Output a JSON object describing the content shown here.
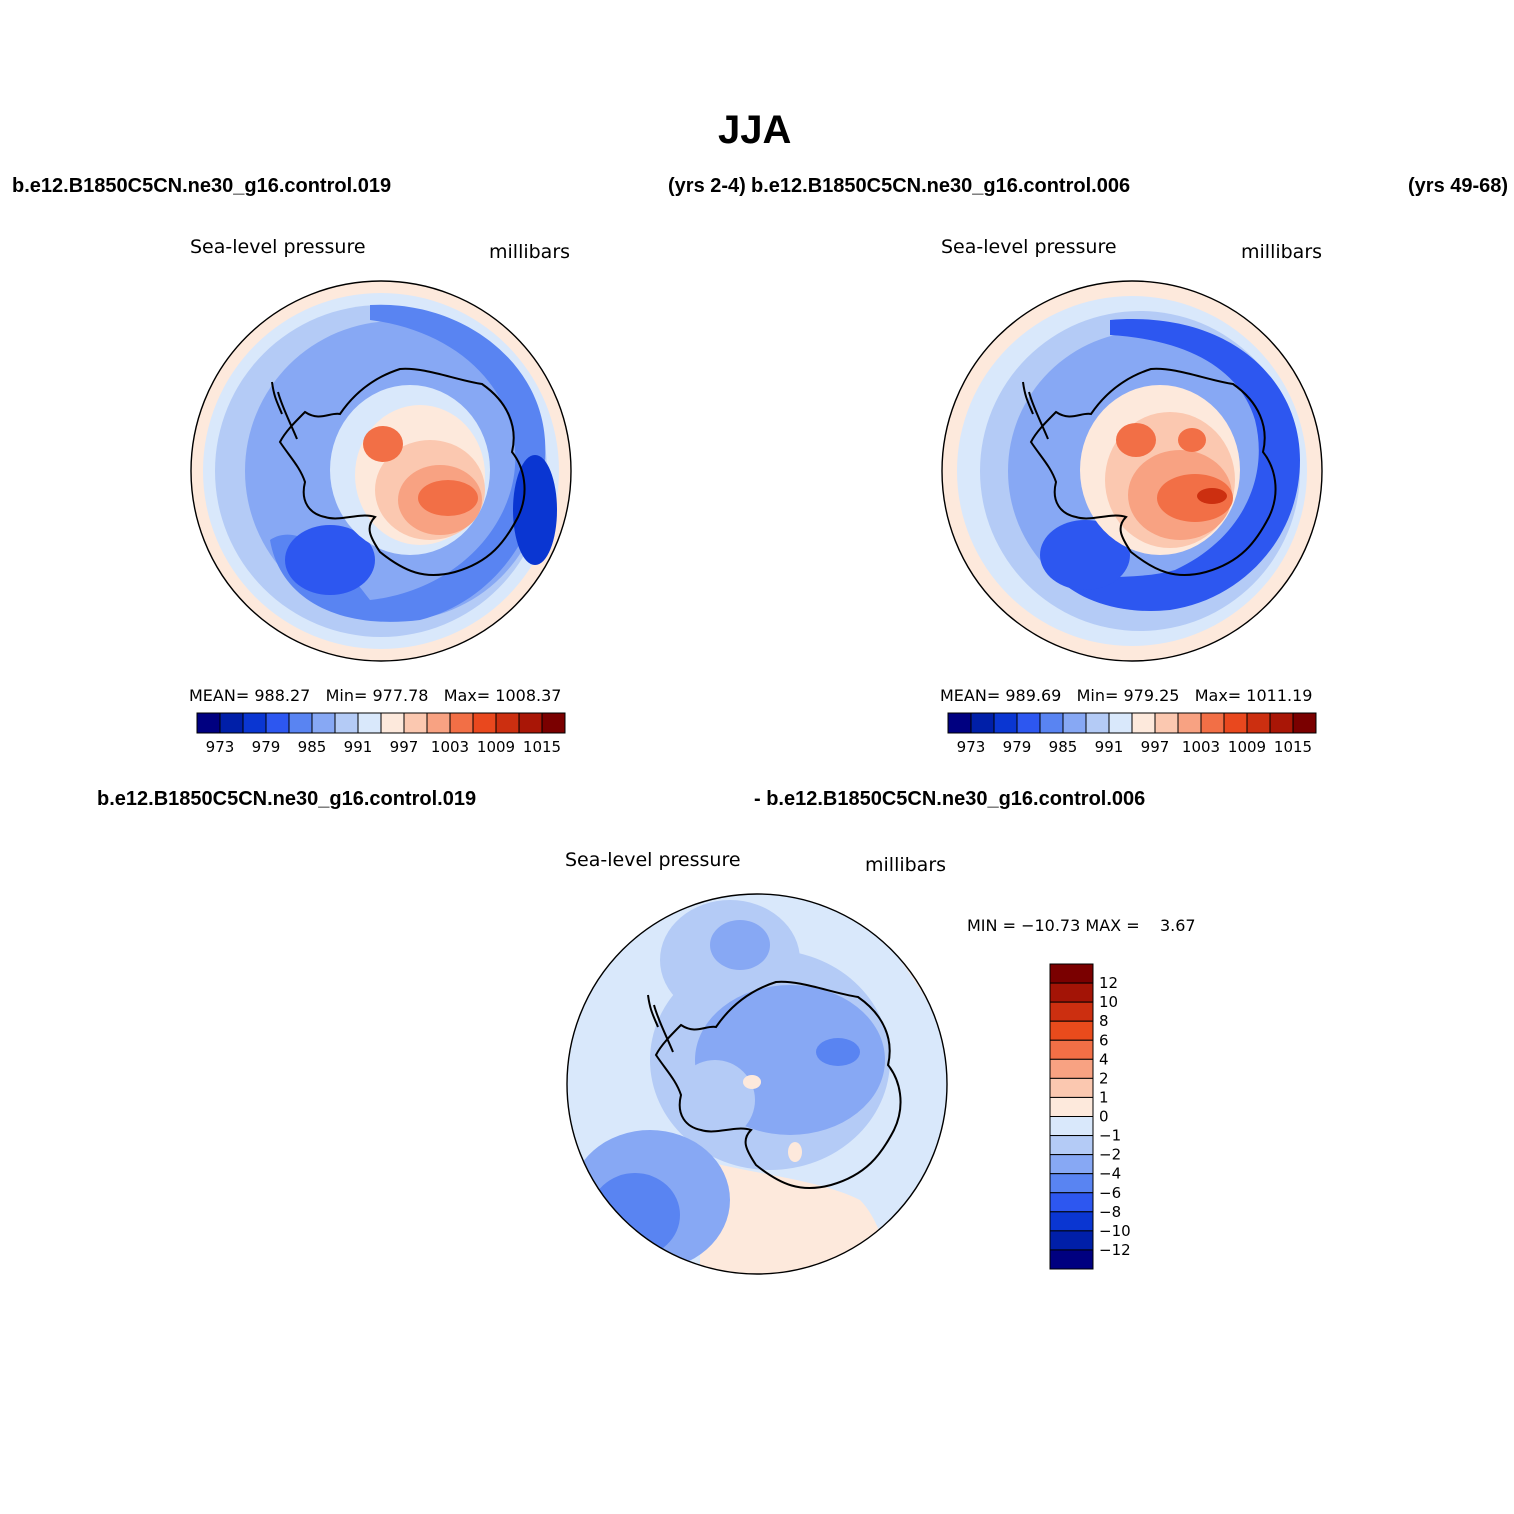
{
  "title": "JJA",
  "header": {
    "left_case": "b.e12.B1850C5CN.ne30_g16.control.019",
    "mid_years": "(yrs 2-4)",
    "mid_case": "b.e12.B1850C5CN.ne30_g16.control.006",
    "right_years": "(yrs 49-68)"
  },
  "diff_header": {
    "left_case": "b.e12.B1850C5CN.ne30_g16.control.019",
    "right_case": "- b.e12.B1850C5CN.ne30_g16.control.006"
  },
  "colors": {
    "abs_palette": [
      "#000080",
      "#001fa8",
      "#0a36d2",
      "#2d57f0",
      "#5984f2",
      "#87a8f4",
      "#b4cbf6",
      "#d9e8fb",
      "#fde9dc",
      "#fbc8b0",
      "#f8a282",
      "#f26f46",
      "#e9481e",
      "#cc2f10",
      "#a91606",
      "#7a0000"
    ],
    "diff_palette": [
      "#7a0000",
      "#a31406",
      "#cc2f10",
      "#e94b1c",
      "#f26f46",
      "#f8a282",
      "#fbc8b0",
      "#fde9dc",
      "#d9e8fb",
      "#b4cbf6",
      "#87a8f4",
      "#5984f2",
      "#2d57f0",
      "#0a36d2",
      "#001fa8",
      "#000080"
    ]
  },
  "chart_data": [
    {
      "type": "polar-contour-map",
      "name": "control.019 (yrs 2-4)",
      "variable": "Sea-level pressure",
      "units": "millibars",
      "stats": {
        "mean_label": "MEAN=",
        "mean": "988.27",
        "min_label": "Min=",
        "min": "977.78",
        "max_label": "Max=",
        "max": "1008.37"
      },
      "colorbar_levels": [
        "973",
        "979",
        "985",
        "991",
        "997",
        "1003",
        "1009",
        "1015"
      ]
    },
    {
      "type": "polar-contour-map",
      "name": "control.006 (yrs 49-68)",
      "variable": "Sea-level pressure",
      "units": "millibars",
      "stats": {
        "mean_label": "MEAN=",
        "mean": "989.69",
        "min_label": "Min=",
        "min": "979.25",
        "max_label": "Max=",
        "max": "1011.19"
      },
      "colorbar_levels": [
        "973",
        "979",
        "985",
        "991",
        "997",
        "1003",
        "1009",
        "1015"
      ]
    },
    {
      "type": "polar-contour-map",
      "name": "difference",
      "variable": "Sea-level pressure",
      "units": "millibars",
      "stats": {
        "min_label": "MIN =",
        "min": "−10.73",
        "max_label": "MAX =",
        "max": "3.67"
      },
      "colorbar_levels": [
        "12",
        "10",
        "8",
        "6",
        "4",
        "2",
        "1",
        "0",
        "−1",
        "−2",
        "−4",
        "−6",
        "−8",
        "−10",
        "−12"
      ]
    }
  ]
}
